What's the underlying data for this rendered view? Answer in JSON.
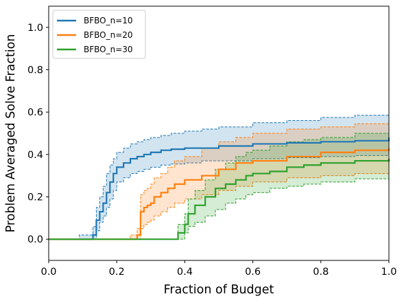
{
  "chart_data": {
    "type": "line",
    "xlabel": "Fraction of Budget",
    "ylabel": "Problem Averaged Solve Fraction",
    "xlim": [
      0.0,
      1.0
    ],
    "ylim": [
      -0.1,
      1.1
    ],
    "xticks": [
      "0.0",
      "0.2",
      "0.4",
      "0.6",
      "0.8",
      "1.0"
    ],
    "yticks": [
      "0.0",
      "0.2",
      "0.4",
      "0.6",
      "0.8",
      "1.0"
    ],
    "grid": false,
    "legend_position": "top-left",
    "series": [
      {
        "name": "BFBO_n=10",
        "color": "#1f77b4",
        "x": [
          0.0,
          0.09,
          0.13,
          0.14,
          0.15,
          0.16,
          0.17,
          0.18,
          0.19,
          0.2,
          0.22,
          0.24,
          0.26,
          0.28,
          0.3,
          0.33,
          0.36,
          0.4,
          0.45,
          0.5,
          0.6,
          0.7,
          0.8,
          0.9,
          1.0
        ],
        "y": [
          0.0,
          0.0,
          0.02,
          0.09,
          0.13,
          0.17,
          0.22,
          0.27,
          0.31,
          0.34,
          0.36,
          0.38,
          0.39,
          0.4,
          0.41,
          0.42,
          0.425,
          0.43,
          0.43,
          0.44,
          0.45,
          0.455,
          0.46,
          0.465,
          0.48
        ],
        "lower": [
          0.0,
          0.0,
          0.0,
          0.04,
          0.08,
          0.11,
          0.15,
          0.19,
          0.23,
          0.27,
          0.29,
          0.31,
          0.32,
          0.33,
          0.34,
          0.35,
          0.355,
          0.36,
          0.37,
          0.37,
          0.38,
          0.385,
          0.39,
          0.395,
          0.4
        ],
        "upper": [
          0.0,
          0.02,
          0.06,
          0.15,
          0.2,
          0.25,
          0.31,
          0.35,
          0.38,
          0.41,
          0.43,
          0.45,
          0.46,
          0.47,
          0.48,
          0.49,
          0.5,
          0.51,
          0.52,
          0.53,
          0.55,
          0.56,
          0.575,
          0.585,
          0.6
        ]
      },
      {
        "name": "BFBO_n=20",
        "color": "#ff7f0e",
        "x": [
          0.0,
          0.24,
          0.26,
          0.27,
          0.28,
          0.29,
          0.3,
          0.31,
          0.33,
          0.35,
          0.37,
          0.4,
          0.45,
          0.5,
          0.55,
          0.6,
          0.7,
          0.8,
          0.9,
          1.0
        ],
        "y": [
          0.0,
          0.0,
          0.02,
          0.13,
          0.15,
          0.16,
          0.17,
          0.2,
          0.22,
          0.24,
          0.26,
          0.28,
          0.3,
          0.33,
          0.36,
          0.37,
          0.39,
          0.41,
          0.42,
          0.43
        ],
        "lower": [
          0.0,
          0.0,
          0.0,
          0.05,
          0.07,
          0.08,
          0.09,
          0.11,
          0.13,
          0.15,
          0.17,
          0.19,
          0.21,
          0.23,
          0.25,
          0.27,
          0.29,
          0.3,
          0.31,
          0.32
        ],
        "upper": [
          0.0,
          0.02,
          0.05,
          0.21,
          0.23,
          0.24,
          0.26,
          0.29,
          0.31,
          0.34,
          0.37,
          0.39,
          0.43,
          0.46,
          0.48,
          0.5,
          0.52,
          0.53,
          0.545,
          0.56
        ]
      },
      {
        "name": "BFBO_n=30",
        "color": "#2ca02c",
        "x": [
          0.0,
          0.37,
          0.38,
          0.4,
          0.41,
          0.43,
          0.46,
          0.49,
          0.52,
          0.55,
          0.58,
          0.6,
          0.65,
          0.7,
          0.75,
          0.8,
          0.9,
          1.0
        ],
        "y": [
          0.0,
          0.0,
          0.03,
          0.07,
          0.12,
          0.16,
          0.2,
          0.24,
          0.26,
          0.28,
          0.3,
          0.31,
          0.32,
          0.34,
          0.35,
          0.36,
          0.37,
          0.38
        ],
        "lower": [
          0.0,
          0.0,
          0.0,
          0.03,
          0.06,
          0.08,
          0.11,
          0.14,
          0.17,
          0.19,
          0.21,
          0.22,
          0.24,
          0.25,
          0.26,
          0.27,
          0.285,
          0.3
        ],
        "upper": [
          0.0,
          0.0,
          0.07,
          0.12,
          0.19,
          0.23,
          0.28,
          0.33,
          0.36,
          0.39,
          0.41,
          0.42,
          0.44,
          0.46,
          0.47,
          0.48,
          0.5,
          0.51
        ]
      }
    ]
  }
}
